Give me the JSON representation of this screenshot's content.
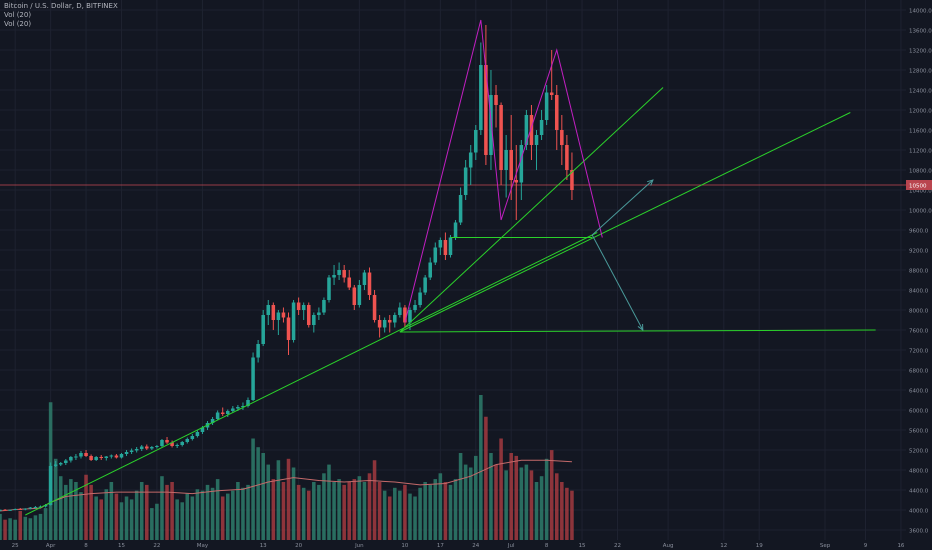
{
  "header": {
    "symbol_line": "Bitcoin / U.S. Dollar, D, BITFINEX",
    "vol_label_1": "Vol (20)",
    "vol_label_2": "Vol (20)"
  },
  "colors": {
    "background": "#131722",
    "grid": "#1e2230",
    "up": "#26a69a",
    "down": "#ef5350",
    "up_volume": "#2e7d6b",
    "down_volume": "#a33a3f",
    "volume_ma": "#c46a6a",
    "trend_lines": "#2bd12b",
    "pattern": "#c21fc2",
    "arrow": "#4a9a9a",
    "price_line": "#b9454f",
    "axis_text": "#8a8f9c"
  },
  "chart_data": {
    "type": "candlestick",
    "title": "Bitcoin / U.S. Dollar, D, BITFINEX",
    "yticks": [
      3600,
      4000,
      4400,
      4800,
      5200,
      5600,
      6000,
      6400,
      6800,
      7200,
      7600,
      8000,
      8400,
      8800,
      9200,
      9600,
      10000,
      10400,
      10800,
      11200,
      11600,
      12000,
      12400,
      12800,
      13200,
      13600,
      14000
    ],
    "ylim": [
      3400,
      14200
    ],
    "current_price": 10500,
    "current_price_label": "10500",
    "xticks": [
      {
        "label": "25",
        "day": 0
      },
      {
        "label": "Apr",
        "day": 7
      },
      {
        "label": "8",
        "day": 14
      },
      {
        "label": "15",
        "day": 21
      },
      {
        "label": "22",
        "day": 28
      },
      {
        "label": "May",
        "day": 37
      },
      {
        "label": "13",
        "day": 49
      },
      {
        "label": "20",
        "day": 56
      },
      {
        "label": "Jun",
        "day": 68
      },
      {
        "label": "10",
        "day": 77
      },
      {
        "label": "17",
        "day": 84
      },
      {
        "label": "24",
        "day": 91
      },
      {
        "label": "Jul",
        "day": 98
      },
      {
        "label": "8",
        "day": 105
      },
      {
        "label": "15",
        "day": 112
      },
      {
        "label": "22",
        "day": 119
      },
      {
        "label": "Aug",
        "day": 129
      },
      {
        "label": "12",
        "day": 140
      },
      {
        "label": "19",
        "day": 147
      },
      {
        "label": "Sep",
        "day": 160
      },
      {
        "label": "9",
        "day": 168
      },
      {
        "label": "16",
        "day": 175
      }
    ],
    "xlim": [
      -3,
      176
    ],
    "candles": [
      [
        -3,
        3990,
        4010,
        3970,
        4005
      ],
      [
        -2,
        4005,
        4020,
        3990,
        3998
      ],
      [
        -1,
        3998,
        4010,
        3980,
        4004
      ],
      [
        0,
        4004,
        4030,
        3995,
        4020
      ],
      [
        1,
        4020,
        4040,
        4000,
        4010
      ],
      [
        2,
        4010,
        4035,
        3995,
        4028
      ],
      [
        3,
        4028,
        4060,
        4015,
        4050
      ],
      [
        4,
        4050,
        4080,
        4030,
        4060
      ],
      [
        5,
        4060,
        4090,
        4040,
        4070
      ],
      [
        6,
        4070,
        4120,
        4050,
        4100
      ],
      [
        7,
        4100,
        4950,
        4090,
        4880
      ],
      [
        8,
        4880,
        4980,
        4860,
        4910
      ],
      [
        9,
        4910,
        4960,
        4880,
        4940
      ],
      [
        10,
        4940,
        5020,
        4900,
        4990
      ],
      [
        11,
        4990,
        5080,
        4950,
        5060
      ],
      [
        12,
        5060,
        5120,
        5000,
        5070
      ],
      [
        13,
        5070,
        5180,
        5030,
        5140
      ],
      [
        14,
        5140,
        5200,
        5060,
        5080
      ],
      [
        15,
        5080,
        5110,
        4980,
        5000
      ],
      [
        16,
        5000,
        5080,
        4980,
        5060
      ],
      [
        17,
        5060,
        5100,
        5000,
        5040
      ],
      [
        18,
        5040,
        5080,
        4990,
        5070
      ],
      [
        19,
        5070,
        5110,
        5030,
        5090
      ],
      [
        20,
        5090,
        5120,
        5030,
        5050
      ],
      [
        21,
        5050,
        5140,
        5030,
        5120
      ],
      [
        22,
        5120,
        5200,
        5080,
        5160
      ],
      [
        23,
        5160,
        5230,
        5120,
        5190
      ],
      [
        24,
        5190,
        5260,
        5150,
        5220
      ],
      [
        25,
        5220,
        5300,
        5180,
        5270
      ],
      [
        26,
        5270,
        5310,
        5200,
        5230
      ],
      [
        27,
        5230,
        5280,
        5200,
        5260
      ],
      [
        28,
        5260,
        5300,
        5230,
        5280
      ],
      [
        29,
        5280,
        5420,
        5260,
        5400
      ],
      [
        30,
        5400,
        5460,
        5320,
        5350
      ],
      [
        31,
        5350,
        5390,
        5250,
        5280
      ],
      [
        32,
        5280,
        5330,
        5240,
        5300
      ],
      [
        33,
        5300,
        5380,
        5270,
        5360
      ],
      [
        34,
        5360,
        5450,
        5330,
        5420
      ],
      [
        35,
        5420,
        5520,
        5390,
        5480
      ],
      [
        36,
        5480,
        5590,
        5450,
        5560
      ],
      [
        37,
        5560,
        5680,
        5520,
        5650
      ],
      [
        38,
        5650,
        5780,
        5600,
        5740
      ],
      [
        39,
        5740,
        5860,
        5700,
        5820
      ],
      [
        40,
        5820,
        5990,
        5790,
        5950
      ],
      [
        41,
        5950,
        6050,
        5880,
        5920
      ],
      [
        42,
        5920,
        6010,
        5860,
        5980
      ],
      [
        43,
        5980,
        6080,
        5940,
        6030
      ],
      [
        44,
        6030,
        6100,
        5980,
        6060
      ],
      [
        45,
        6060,
        6150,
        6000,
        6080
      ],
      [
        46,
        6080,
        6250,
        6050,
        6200
      ],
      [
        47,
        6200,
        7150,
        6180,
        7050
      ],
      [
        48,
        7050,
        7400,
        6950,
        7320
      ],
      [
        49,
        7320,
        8000,
        7280,
        7900
      ],
      [
        50,
        7900,
        8200,
        7700,
        8100
      ],
      [
        51,
        8100,
        8150,
        7600,
        7800
      ],
      [
        52,
        7800,
        8000,
        7500,
        7950
      ],
      [
        53,
        7950,
        8050,
        7750,
        7850
      ],
      [
        54,
        7850,
        7950,
        7100,
        7400
      ],
      [
        55,
        7400,
        8200,
        7350,
        8150
      ],
      [
        56,
        8150,
        8250,
        7900,
        8000
      ],
      [
        57,
        8000,
        8150,
        7800,
        8100
      ],
      [
        58,
        8100,
        8150,
        7650,
        7700
      ],
      [
        59,
        7700,
        7950,
        7550,
        7900
      ],
      [
        60,
        7900,
        8050,
        7800,
        7950
      ],
      [
        61,
        7950,
        8250,
        7900,
        8200
      ],
      [
        62,
        8200,
        8700,
        8150,
        8650
      ],
      [
        63,
        8650,
        8900,
        8500,
        8700
      ],
      [
        64,
        8700,
        8950,
        8600,
        8800
      ],
      [
        65,
        8800,
        8900,
        8550,
        8650
      ],
      [
        66,
        8650,
        8800,
        8400,
        8450
      ],
      [
        67,
        8450,
        8500,
        8000,
        8100
      ],
      [
        68,
        8100,
        8600,
        8050,
        8500
      ],
      [
        69,
        8500,
        8800,
        8400,
        8750
      ],
      [
        70,
        8750,
        8850,
        8200,
        8300
      ],
      [
        71,
        8300,
        8400,
        7750,
        7800
      ],
      [
        72,
        7800,
        7900,
        7450,
        7650
      ],
      [
        73,
        7650,
        7850,
        7550,
        7800
      ],
      [
        74,
        7800,
        7900,
        7550,
        7750
      ],
      [
        75,
        7750,
        7950,
        7650,
        7900
      ],
      [
        76,
        7900,
        8150,
        7850,
        8050
      ],
      [
        77,
        8050,
        8100,
        7650,
        7750
      ],
      [
        78,
        7750,
        8050,
        7600,
        8000
      ],
      [
        79,
        8000,
        8200,
        7950,
        8100
      ],
      [
        80,
        8100,
        8450,
        8050,
        8350
      ],
      [
        81,
        8350,
        8700,
        8300,
        8650
      ],
      [
        82,
        8650,
        9050,
        8600,
        8950
      ],
      [
        83,
        8950,
        9350,
        8900,
        9250
      ],
      [
        84,
        9250,
        9450,
        9100,
        9400
      ],
      [
        85,
        9400,
        9550,
        9000,
        9100
      ],
      [
        86,
        9100,
        9500,
        9050,
        9450
      ],
      [
        87,
        9450,
        9800,
        9400,
        9750
      ],
      [
        88,
        9750,
        10450,
        9700,
        10300
      ],
      [
        89,
        10300,
        11000,
        10200,
        10850
      ],
      [
        90,
        10850,
        11300,
        10500,
        11150
      ],
      [
        91,
        11150,
        11700,
        11000,
        11600
      ],
      [
        92,
        11600,
        13350,
        11500,
        12900
      ],
      [
        93,
        12900,
        13700,
        10900,
        11100
      ],
      [
        94,
        11100,
        12800,
        10800,
        12300
      ],
      [
        95,
        12300,
        12500,
        11650,
        12100
      ],
      [
        96,
        12100,
        12150,
        10500,
        10800
      ],
      [
        97,
        10800,
        11500,
        10250,
        11200
      ],
      [
        98,
        11200,
        11900,
        10200,
        10600
      ],
      [
        99,
        10600,
        11300,
        9800,
        10550
      ],
      [
        100,
        10550,
        11400,
        10200,
        11300
      ],
      [
        101,
        11300,
        12000,
        11200,
        11900
      ],
      [
        102,
        11900,
        12100,
        11000,
        11300
      ],
      [
        103,
        11300,
        11600,
        10800,
        11500
      ],
      [
        104,
        11500,
        12000,
        11400,
        11800
      ],
      [
        105,
        11800,
        12500,
        11700,
        12350
      ],
      [
        106,
        12350,
        13200,
        12200,
        12300
      ],
      [
        107,
        12300,
        12500,
        11200,
        11600
      ],
      [
        108,
        11600,
        11900,
        10900,
        11300
      ],
      [
        109,
        11300,
        11500,
        10600,
        10800
      ],
      [
        110,
        10800,
        11150,
        10200,
        10400
      ]
    ],
    "volume": [
      [
        -3,
        18
      ],
      [
        -2,
        14
      ],
      [
        -1,
        15
      ],
      [
        0,
        14
      ],
      [
        1,
        20
      ],
      [
        2,
        16
      ],
      [
        3,
        15
      ],
      [
        4,
        17
      ],
      [
        5,
        18
      ],
      [
        6,
        22
      ],
      [
        7,
        95
      ],
      [
        8,
        56
      ],
      [
        9,
        44
      ],
      [
        10,
        38
      ],
      [
        11,
        42
      ],
      [
        12,
        40
      ],
      [
        13,
        33
      ],
      [
        14,
        45
      ],
      [
        15,
        38
      ],
      [
        16,
        30
      ],
      [
        17,
        28
      ],
      [
        18,
        35
      ],
      [
        19,
        40
      ],
      [
        20,
        32
      ],
      [
        21,
        26
      ],
      [
        22,
        30
      ],
      [
        23,
        28
      ],
      [
        24,
        34
      ],
      [
        25,
        40
      ],
      [
        26,
        38
      ],
      [
        27,
        22
      ],
      [
        28,
        25
      ],
      [
        29,
        44
      ],
      [
        30,
        38
      ],
      [
        31,
        40
      ],
      [
        32,
        28
      ],
      [
        33,
        26
      ],
      [
        34,
        32
      ],
      [
        35,
        30
      ],
      [
        36,
        35
      ],
      [
        37,
        34
      ],
      [
        38,
        38
      ],
      [
        39,
        36
      ],
      [
        40,
        42
      ],
      [
        41,
        30
      ],
      [
        42,
        32
      ],
      [
        43,
        34
      ],
      [
        44,
        40
      ],
      [
        45,
        36
      ],
      [
        46,
        38
      ],
      [
        47,
        70
      ],
      [
        48,
        64
      ],
      [
        49,
        60
      ],
      [
        50,
        52
      ],
      [
        51,
        42
      ],
      [
        52,
        55
      ],
      [
        53,
        40
      ],
      [
        54,
        56
      ],
      [
        55,
        50
      ],
      [
        56,
        38
      ],
      [
        57,
        36
      ],
      [
        58,
        34
      ],
      [
        59,
        40
      ],
      [
        60,
        38
      ],
      [
        61,
        46
      ],
      [
        62,
        52
      ],
      [
        63,
        40
      ],
      [
        64,
        42
      ],
      [
        65,
        38
      ],
      [
        66,
        40
      ],
      [
        67,
        42
      ],
      [
        68,
        44
      ],
      [
        69,
        40
      ],
      [
        70,
        46
      ],
      [
        71,
        55
      ],
      [
        72,
        40
      ],
      [
        73,
        34
      ],
      [
        74,
        30
      ],
      [
        75,
        36
      ],
      [
        76,
        34
      ],
      [
        77,
        38
      ],
      [
        78,
        32
      ],
      [
        79,
        30
      ],
      [
        80,
        36
      ],
      [
        81,
        40
      ],
      [
        82,
        38
      ],
      [
        83,
        42
      ],
      [
        84,
        46
      ],
      [
        85,
        40
      ],
      [
        86,
        38
      ],
      [
        87,
        42
      ],
      [
        88,
        60
      ],
      [
        89,
        52
      ],
      [
        90,
        50
      ],
      [
        91,
        58
      ],
      [
        92,
        100
      ],
      [
        93,
        85
      ],
      [
        94,
        60
      ],
      [
        95,
        52
      ],
      [
        96,
        70
      ],
      [
        97,
        48
      ],
      [
        98,
        60
      ],
      [
        99,
        58
      ],
      [
        100,
        50
      ],
      [
        101,
        52
      ],
      [
        102,
        48
      ],
      [
        103,
        40
      ],
      [
        104,
        44
      ],
      [
        105,
        56
      ],
      [
        106,
        62
      ],
      [
        107,
        46
      ],
      [
        108,
        40
      ],
      [
        109,
        36
      ],
      [
        110,
        34
      ]
    ],
    "volume_ma": [
      [
        -3,
        20
      ],
      [
        0,
        21
      ],
      [
        5,
        22
      ],
      [
        7,
        26
      ],
      [
        10,
        30
      ],
      [
        15,
        32
      ],
      [
        20,
        33
      ],
      [
        25,
        33
      ],
      [
        30,
        33
      ],
      [
        35,
        32
      ],
      [
        40,
        34
      ],
      [
        45,
        35
      ],
      [
        50,
        40
      ],
      [
        55,
        43
      ],
      [
        60,
        41
      ],
      [
        65,
        40
      ],
      [
        70,
        41
      ],
      [
        75,
        40
      ],
      [
        80,
        38
      ],
      [
        85,
        39
      ],
      [
        90,
        44
      ],
      [
        95,
        52
      ],
      [
        100,
        55
      ],
      [
        105,
        55
      ],
      [
        110,
        54
      ]
    ],
    "annotations": {
      "trend_lines": [
        [
          [
            2,
            3900
          ],
          [
            115,
            9550
          ]
        ],
        [
          [
            76,
            7560
          ],
          [
            165,
            11950
          ]
        ],
        [
          [
            76,
            7560
          ],
          [
            128,
            12450
          ]
        ],
        [
          [
            76,
            7560
          ],
          [
            170,
            7600
          ]
        ],
        [
          [
            86,
            9450
          ],
          [
            114,
            9450
          ]
        ]
      ],
      "pattern_lines": [
        [
          [
            77,
            7750
          ],
          [
            92,
            13800
          ],
          [
            96,
            9800
          ],
          [
            107,
            13200
          ],
          [
            116,
            9450
          ]
        ]
      ],
      "arrows": [
        [
          [
            114,
            9500
          ],
          [
            126,
            10600
          ]
        ],
        [
          [
            114,
            9500
          ],
          [
            124,
            7600
          ]
        ]
      ]
    }
  }
}
